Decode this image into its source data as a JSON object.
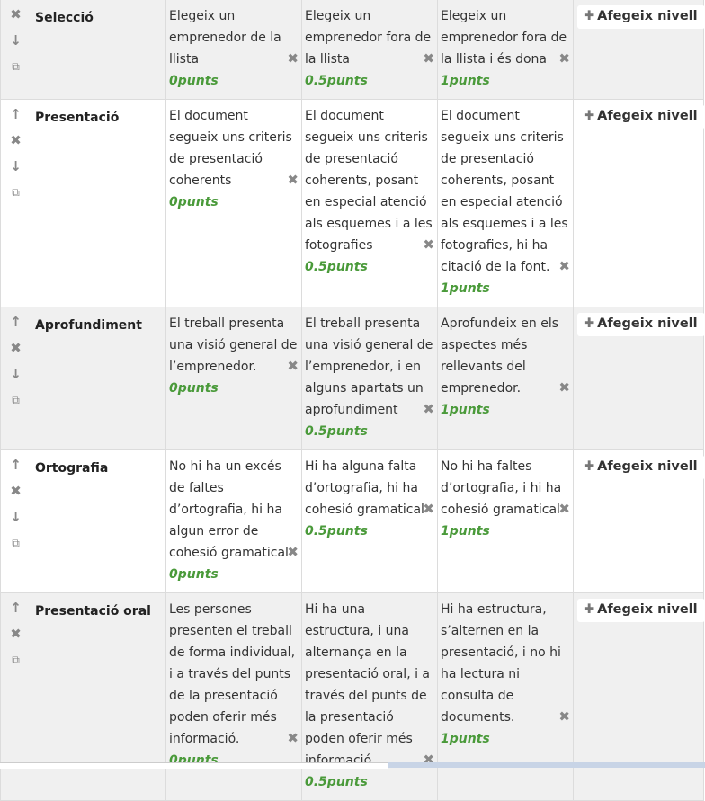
{
  "add_level_label": "Afegeix nivell",
  "icons": {
    "up": "arrow-up-icon",
    "delete": "close-icon",
    "down": "arrow-down-icon",
    "duplicate": "copy-icon",
    "add": "plus-icon"
  },
  "colors": {
    "score": "#4a9a3a",
    "odd_row": "#f0f0f0"
  },
  "criteria": [
    {
      "name": "Selecció",
      "actions": [
        "delete",
        "down",
        "duplicate"
      ],
      "levels": [
        {
          "desc": "Elegeix un emprenedor de la llista",
          "score": "0punts"
        },
        {
          "desc": "Elegeix un emprenedor fora de la llista",
          "score": "0.5punts"
        },
        {
          "desc": "Elegeix un emprenedor fora de la llista i és dona",
          "score": "1punts"
        }
      ]
    },
    {
      "name": "Presentació",
      "actions": [
        "up",
        "delete",
        "down",
        "duplicate"
      ],
      "levels": [
        {
          "desc": "El document segueix uns criteris de presentació coherents",
          "score": "0punts"
        },
        {
          "desc": "El document segueix uns criteris de presentació coherents, posant en especial atenció als esquemes i a les fotografies",
          "score": "0.5punts"
        },
        {
          "desc": "El document segueix uns criteris de presentació coherents, posant en especial atenció als esquemes i a les fotografies, hi ha citació de la font.",
          "score": "1punts"
        }
      ]
    },
    {
      "name": "Aprofundiment",
      "actions": [
        "up",
        "delete",
        "down",
        "duplicate"
      ],
      "levels": [
        {
          "desc": "El treball presenta una visió general de l’emprenedor.",
          "score": "0punts"
        },
        {
          "desc": "El treball presenta una visió general de l’emprenedor, i en alguns apartats un aprofundiment",
          "score": "0.5punts"
        },
        {
          "desc": "Aprofundeix en els aspectes més rellevants del emprenedor.",
          "score": "1punts"
        }
      ]
    },
    {
      "name": "Ortografia",
      "actions": [
        "up",
        "delete",
        "down",
        "duplicate"
      ],
      "levels": [
        {
          "desc": "No hi ha un excés de faltes d’ortografia, hi ha algun error de cohesió gramatical",
          "score": "0punts"
        },
        {
          "desc": "Hi ha alguna falta d’ortografia, hi ha cohesió gramatical",
          "score": "0.5punts"
        },
        {
          "desc": "No hi ha faltes d’ortografia, i hi ha cohesió gramatical",
          "score": "1punts"
        }
      ]
    },
    {
      "name": "Presentació oral",
      "actions": [
        "up",
        "delete",
        "duplicate"
      ],
      "levels": [
        {
          "desc": "Les persones presenten el treball de forma individual, i a través del punts de la presentació poden oferir més informació.",
          "score": "0punts"
        },
        {
          "desc": "Hi ha una estructura, i una alternança en la presentació oral, i a través del punts de la presentació poden oferir més informació.",
          "score": "0.5punts"
        },
        {
          "desc": "Hi ha estructura, s’alternen en la presentació, i no hi ha lectura ni consulta de documents.",
          "score": "1punts"
        }
      ]
    }
  ]
}
